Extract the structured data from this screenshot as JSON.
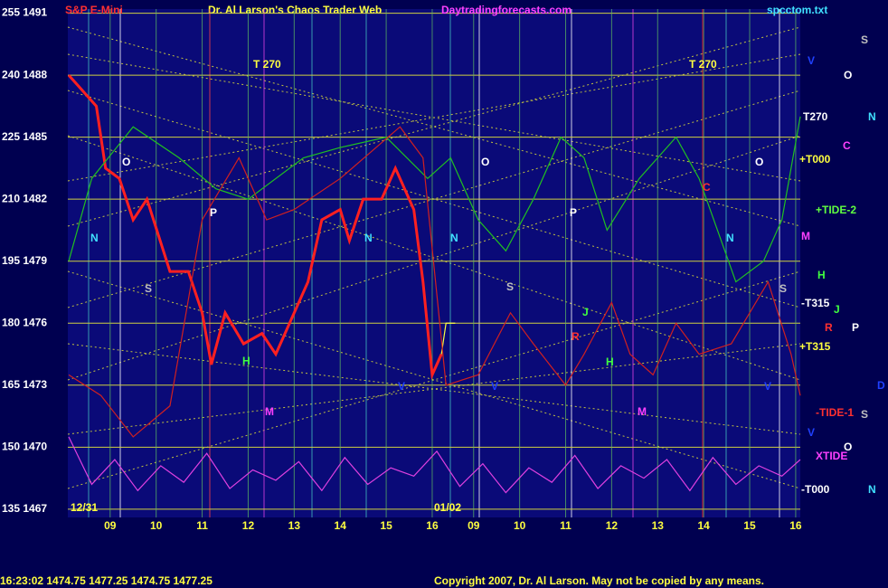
{
  "chart_data": {
    "type": "line",
    "title": "Dr. Al Larson's Chaos Trader Web",
    "ylim": [
      1466.6,
      1491.2
    ],
    "yticks": [
      {
        "value": 1467,
        "label": "135 1467"
      },
      {
        "value": 1470,
        "label": "150 1470"
      },
      {
        "value": 1473,
        "label": "165 1473"
      },
      {
        "value": 1476,
        "label": "180 1476"
      },
      {
        "value": 1479,
        "label": "195 1479"
      },
      {
        "value": 1482,
        "label": "210 1482"
      },
      {
        "value": 1485,
        "label": "225 1485"
      },
      {
        "value": 1488,
        "label": "240 1488"
      },
      {
        "value": 1491,
        "label": "255 1491"
      }
    ],
    "xlim": [
      8.08,
      24.0
    ],
    "xticks": [
      {
        "value": 9,
        "label": "09"
      },
      10,
      11,
      12,
      13,
      14,
      15,
      16,
      {
        "value": 16.9,
        "label": "09"
      },
      {
        "value": 17.9,
        "label": "10"
      },
      {
        "value": 18.9,
        "label": "11"
      },
      {
        "value": 19.9,
        "label": "12"
      },
      {
        "value": 20.9,
        "label": "13"
      },
      {
        "value": 21.9,
        "label": "14"
      },
      {
        "value": 22.9,
        "label": "15"
      },
      {
        "value": 23.9,
        "label": "16"
      }
    ],
    "grid": true,
    "series": [
      {
        "color": "#ff2020",
        "x": [
          8.1,
          8.3,
          8.7,
          8.9,
          9.2,
          9.5,
          9.8,
          10.3,
          10.7,
          11.0,
          11.2,
          11.5,
          11.9,
          12.3,
          12.6,
          12.9,
          13.3,
          13.6,
          14.0,
          14.2,
          14.5,
          14.9,
          15.2,
          15.6,
          15.8,
          16.0,
          16.2
        ],
        "values": [
          1488,
          1487.5,
          1486.5,
          1483.5,
          1483,
          1481,
          1482,
          1478.5,
          1478.5,
          1476.5,
          1474,
          1476.5,
          1475,
          1475.5,
          1474.5,
          1476,
          1478,
          1481,
          1481.5,
          1480,
          1482,
          1482,
          1483.5,
          1481.5,
          1478,
          1473.5,
          1474.5
        ]
      },
      {
        "color": "#ffff40",
        "x": [
          16.2,
          16.3,
          16.5
        ],
        "values": [
          1474.5,
          1476,
          1476
        ]
      },
      {
        "color": "#20c020",
        "x": [
          8.1,
          8.6,
          9.5,
          10.5,
          11.3,
          12,
          13.2,
          14,
          15,
          15.9,
          16.4,
          17,
          17.6,
          18.2,
          18.8,
          19.3,
          19.8,
          20.5,
          21.3,
          21.8,
          22.6,
          23.2,
          23.6,
          24
        ],
        "values": [
          1479,
          1483,
          1485.5,
          1484,
          1482.5,
          1482,
          1484,
          1484.5,
          1485,
          1483,
          1484,
          1481,
          1479.5,
          1482,
          1485,
          1484,
          1480.5,
          1483,
          1485,
          1483,
          1478,
          1479,
          1481,
          1486
        ]
      },
      {
        "color": "#d02020",
        "x": [
          8.1,
          8.8,
          9.5,
          10.3,
          11,
          11.8,
          12.4,
          13,
          14,
          15.3,
          15.8,
          16.3,
          17,
          17.7,
          18.2,
          18.9,
          19.3,
          19.9,
          20.3,
          20.8,
          21.3,
          21.8,
          22.5,
          23.3,
          23.8,
          24
        ],
        "values": [
          1473.5,
          1472.5,
          1470.5,
          1472,
          1481,
          1484,
          1481,
          1481.5,
          1483,
          1485.5,
          1484,
          1473,
          1473.5,
          1476.5,
          1475,
          1473,
          1474.5,
          1477,
          1474.5,
          1473.5,
          1476,
          1474.5,
          1475,
          1478,
          1474.5,
          1472.5
        ]
      },
      {
        "color": "#e040e0",
        "x": [
          8.1,
          8.6,
          9.1,
          9.6,
          10.1,
          10.6,
          11.1,
          11.6,
          12.1,
          12.6,
          13.1,
          13.6,
          14.1,
          14.6,
          15.1,
          15.6,
          16.1,
          16.6,
          17.1,
          17.6,
          18.1,
          18.6,
          19.1,
          19.6,
          20.1,
          20.6,
          21.1,
          21.6,
          22.1,
          22.6,
          23.1,
          23.6,
          24
        ],
        "values": [
          1470.5,
          1468.2,
          1469.4,
          1467.9,
          1469.1,
          1468.3,
          1469.7,
          1468,
          1468.9,
          1468.4,
          1469.3,
          1467.9,
          1469.5,
          1468.2,
          1469,
          1468.6,
          1469.8,
          1468.1,
          1469.2,
          1467.8,
          1469,
          1468.3,
          1469.6,
          1468,
          1469.1,
          1468.5,
          1469.4,
          1467.9,
          1469.5,
          1468.2,
          1469.1,
          1468.6,
          1469.4
        ]
      }
    ],
    "annotations": [
      "S&P E-Mini",
      "Daytradingforecasts.com",
      "spcctom.txt",
      "T 270",
      "T 270",
      "12/31",
      "01/02",
      "V",
      "S",
      "O",
      "T270",
      "N",
      "C",
      "+T000",
      "+TIDE-2",
      "M",
      "H",
      "-T315",
      "J",
      "R",
      "P",
      "+T315",
      "D",
      "-TIDE-1",
      "S",
      "V",
      "O",
      "XTIDE",
      "-T000",
      "N",
      "O",
      "N",
      "S",
      "P",
      "H",
      "M",
      "N",
      "V",
      "O",
      "N",
      "S",
      "V",
      "P",
      "J",
      "R",
      "H",
      "M",
      "C",
      "O",
      "N",
      "S",
      "V",
      "16:23:02  1474.75 1477.25 1474.75 1477.25",
      "Copyright 2007, Dr. Al Larson. May not be copied by any means."
    ]
  }
}
